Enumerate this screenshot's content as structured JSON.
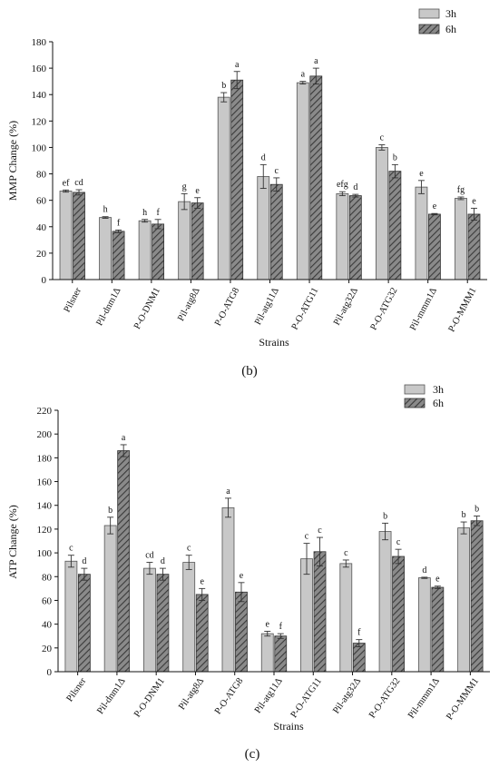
{
  "colors": {
    "h3_fill": "#c8c8c8",
    "h6_fill": "#6e6e6e",
    "axis": "#111111"
  },
  "chart_data": [
    {
      "type": "bar",
      "panel_label": "(b)",
      "xlabel": "Strains",
      "ylabel": "MMP Change (%)",
      "ylim": [
        0,
        180
      ],
      "yticks": [
        0,
        20,
        40,
        60,
        80,
        100,
        120,
        140,
        160,
        180
      ],
      "grid": false,
      "legend": "top-right",
      "categories": [
        "Pilsner",
        "Pil-dnm1Δ",
        "P-O-DNM1",
        "Pil-atg8Δ",
        "P-O-ATG8",
        "Pil-atg11Δ",
        "P-O-ATG11",
        "Pil-atg32Δ",
        "P-O-ATG32",
        "Pil-mmm1Δ",
        "P-O-MMM1"
      ],
      "series": [
        {
          "name": "3h",
          "values": [
            67,
            47,
            44.5,
            59,
            138,
            78,
            149,
            65,
            100,
            70,
            61.5
          ],
          "errors": [
            0.8,
            0.6,
            1,
            6,
            3.5,
            9,
            1,
            1.5,
            2,
            5,
            1
          ],
          "letters": [
            "ef",
            "h",
            "h",
            "g",
            "b",
            "d",
            "a",
            "efg",
            "c",
            "e",
            "fg"
          ]
        },
        {
          "name": "6h",
          "values": [
            66,
            36.5,
            42,
            58,
            151,
            72,
            154,
            63.5,
            82,
            49.5,
            49.5
          ],
          "errors": [
            2,
            1,
            3.5,
            4,
            6.5,
            5,
            6,
            1,
            5,
            0.5,
            4.5
          ],
          "letters": [
            "cd",
            "f",
            "f",
            "e",
            "a",
            "c",
            "a",
            "d",
            "b",
            "e",
            "e"
          ]
        }
      ]
    },
    {
      "type": "bar",
      "panel_label": "(c)",
      "xlabel": "Strains",
      "ylabel": "ATP Change (%)",
      "ylim": [
        0,
        220
      ],
      "yticks": [
        0,
        20,
        40,
        60,
        80,
        100,
        120,
        140,
        160,
        180,
        200,
        220
      ],
      "grid": false,
      "legend": "top-right",
      "categories": [
        "Pilsner",
        "Pil-dnm1Δ",
        "P-O-DNM1",
        "Pil-atg8Δ",
        "P-O-ATG8",
        "Pil-atg11Δ",
        "P-O-ATG11",
        "Pil-atg32Δ",
        "P-O-ATG32",
        "Pil-mmm1Δ",
        "P-O-MMM1"
      ],
      "series": [
        {
          "name": "3h",
          "values": [
            93,
            123,
            87,
            92,
            138,
            32,
            95,
            91,
            118,
            79,
            121
          ],
          "errors": [
            5,
            7,
            5,
            6,
            8,
            2,
            13,
            3,
            7,
            0.5,
            5
          ],
          "letters": [
            "c",
            "b",
            "cd",
            "c",
            "a",
            "e",
            "c",
            "c",
            "b",
            "d",
            "b"
          ]
        },
        {
          "name": "6h",
          "values": [
            82,
            186,
            82,
            65,
            67,
            30,
            101,
            24,
            97,
            71,
            127
          ],
          "errors": [
            5,
            5,
            5,
            5,
            8,
            2,
            12,
            3,
            6,
            1,
            4
          ],
          "letters": [
            "d",
            "a",
            "d",
            "e",
            "e",
            "f",
            "c",
            "f",
            "c",
            "e",
            "b"
          ]
        }
      ]
    }
  ]
}
